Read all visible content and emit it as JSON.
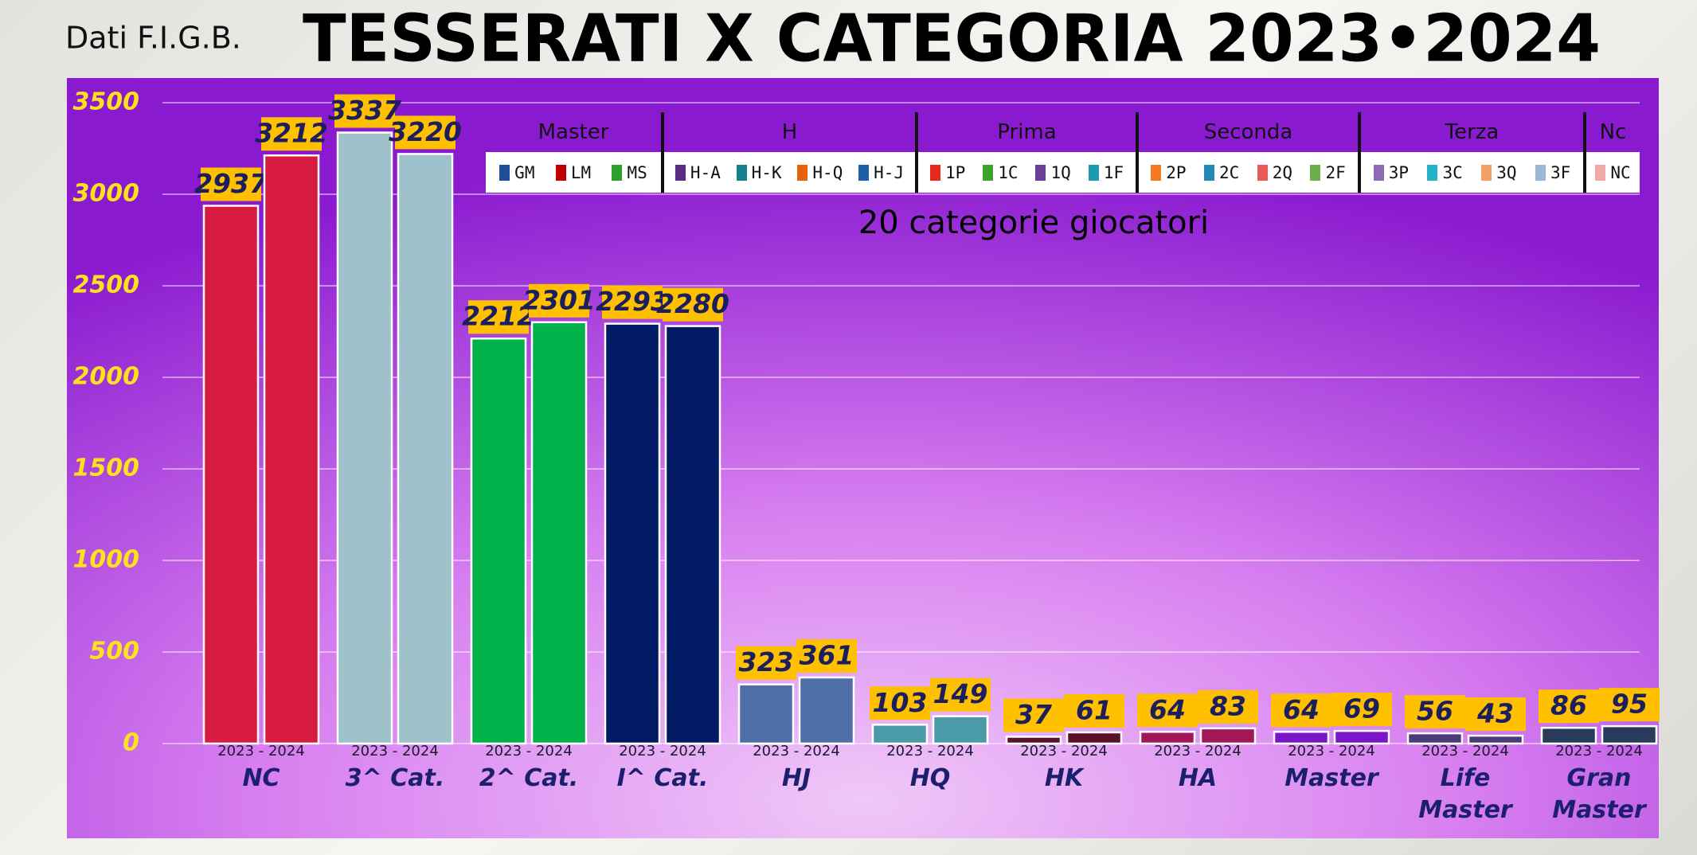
{
  "chart_data": {
    "type": "bar",
    "title": "TESSERATI X CATEGORIA 2023•2024",
    "source": "Dati F.I.G.B.",
    "annotation": "20 categorie giocatori",
    "pair_label": "2023 - 2024",
    "categories": [
      "NC",
      "3^ Cat.",
      "2^ Cat.",
      "I^ Cat.",
      "HJ",
      "HQ",
      "HK",
      "HA",
      "Master",
      "Life Master",
      "Gran Master"
    ],
    "colors": [
      "#d81b40",
      "#9fc1cb",
      "#00b24a",
      "#001a63",
      "#4e6fa8",
      "#4a9aa8",
      "#5a1026",
      "#a3165a",
      "#7a16c8",
      "#4b3b78",
      "#283b5a"
    ],
    "series": [
      {
        "values": [
          2937,
          3337,
          2212,
          2293,
          323,
          103,
          37,
          64,
          64,
          56,
          86
        ]
      },
      {
        "values": [
          3212,
          3220,
          2301,
          2280,
          361,
          149,
          61,
          83,
          69,
          43,
          95
        ]
      }
    ],
    "ylim": [
      0,
      3500
    ],
    "yticks": [
      0,
      500,
      1000,
      1500,
      2000,
      2500,
      3000,
      3500
    ],
    "grid": true,
    "legend_groups": [
      {
        "title": "Master",
        "items": [
          {
            "label": "GM",
            "color": "#1f4e99"
          },
          {
            "label": "LM",
            "color": "#c00000"
          },
          {
            "label": "MS",
            "color": "#2ca02c"
          }
        ]
      },
      {
        "title": "H",
        "items": [
          {
            "label": "H-A",
            "color": "#5b2c83"
          },
          {
            "label": "H-K",
            "color": "#17808f"
          },
          {
            "label": "H-Q",
            "color": "#e8620c"
          },
          {
            "label": "H-J",
            "color": "#1f5fa8"
          }
        ]
      },
      {
        "title": "Prima",
        "items": [
          {
            "label": "1P",
            "color": "#e8261c"
          },
          {
            "label": "1C",
            "color": "#3aa52a"
          },
          {
            "label": "1Q",
            "color": "#6a3d9a"
          },
          {
            "label": "1F",
            "color": "#1a9bb0"
          }
        ]
      },
      {
        "title": "Seconda",
        "items": [
          {
            "label": "2P",
            "color": "#f47c20"
          },
          {
            "label": "2C",
            "color": "#2288b8"
          },
          {
            "label": "2Q",
            "color": "#e85a5a"
          },
          {
            "label": "2F",
            "color": "#6ab04c"
          }
        ]
      },
      {
        "title": "Terza",
        "items": [
          {
            "label": "3P",
            "color": "#8e6bb5"
          },
          {
            "label": "3C",
            "color": "#22b5c8"
          },
          {
            "label": "3Q",
            "color": "#f5a06a"
          },
          {
            "label": "3F",
            "color": "#9ab8d8"
          }
        ]
      },
      {
        "title": "Nc",
        "items": [
          {
            "label": "NC",
            "color": "#f0a8a8"
          }
        ]
      }
    ]
  }
}
